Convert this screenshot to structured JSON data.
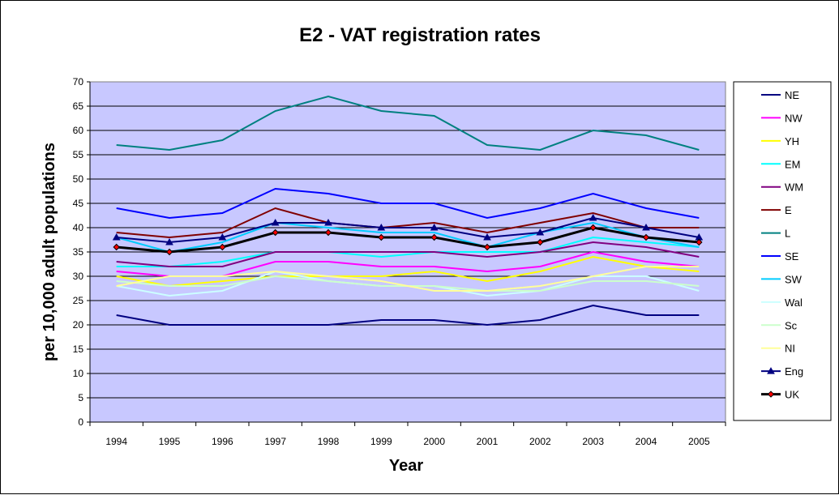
{
  "chart_data": {
    "type": "line",
    "title": "E2 - VAT registration rates",
    "xlabel": "Year",
    "ylabel": "per 10,000 adult populations",
    "ylim": [
      0,
      70
    ],
    "ytick_step": 5,
    "yticks": [
      "0",
      "5",
      "10",
      "15",
      "20",
      "25",
      "30",
      "35",
      "40",
      "45",
      "50",
      "55",
      "60",
      "65",
      "70"
    ],
    "grid": "horizontal",
    "legend_position": "right",
    "plot_background": "#c8c8ff",
    "categories": [
      "1994",
      "1995",
      "1996",
      "1997",
      "1998",
      "1999",
      "2000",
      "2001",
      "2002",
      "2003",
      "2004",
      "2005"
    ],
    "series": [
      {
        "name": "NE",
        "color": "#000080",
        "marker": "none",
        "values": [
          22,
          20,
          20,
          20,
          20,
          21,
          21,
          20,
          21,
          24,
          22,
          22
        ]
      },
      {
        "name": "NW",
        "color": "#ff00ff",
        "marker": "none",
        "values": [
          31,
          30,
          30,
          33,
          33,
          32,
          32,
          31,
          32,
          35,
          33,
          32
        ]
      },
      {
        "name": "YH",
        "color": "#ffff00",
        "marker": "none",
        "values": [
          30,
          28,
          29,
          30,
          30,
          30,
          31,
          29,
          31,
          34,
          32,
          31
        ]
      },
      {
        "name": "EM",
        "color": "#00ffff",
        "marker": "none",
        "values": [
          32,
          32,
          33,
          35,
          35,
          34,
          35,
          35,
          35,
          38,
          37,
          36
        ]
      },
      {
        "name": "WM",
        "color": "#800080",
        "marker": "none",
        "values": [
          33,
          32,
          32,
          35,
          35,
          35,
          35,
          34,
          35,
          37,
          36,
          34
        ]
      },
      {
        "name": "E",
        "color": "#800000",
        "marker": "none",
        "values": [
          39,
          38,
          39,
          44,
          41,
          40,
          41,
          39,
          41,
          43,
          40,
          40
        ]
      },
      {
        "name": "L",
        "color": "#008080",
        "marker": "none",
        "values": [
          57,
          56,
          58,
          64,
          67,
          64,
          63,
          57,
          56,
          60,
          59,
          56
        ]
      },
      {
        "name": "SE",
        "color": "#0000ff",
        "marker": "none",
        "values": [
          44,
          42,
          43,
          48,
          47,
          45,
          45,
          42,
          44,
          47,
          44,
          42
        ]
      },
      {
        "name": "SW",
        "color": "#00ccff",
        "marker": "none",
        "values": [
          38,
          35,
          37,
          41,
          40,
          39,
          39,
          36,
          39,
          41,
          38,
          36
        ]
      },
      {
        "name": "Wal",
        "color": "#ccffff",
        "marker": "none",
        "values": [
          28,
          26,
          27,
          31,
          29,
          28,
          28,
          26,
          27,
          30,
          30,
          27
        ]
      },
      {
        "name": "Sc",
        "color": "#ccffcc",
        "marker": "none",
        "values": [
          29,
          28,
          28,
          30,
          29,
          28,
          28,
          27,
          27,
          29,
          29,
          28
        ]
      },
      {
        "name": "NI",
        "color": "#ffff99",
        "marker": "none",
        "values": [
          28,
          30,
          30,
          31,
          30,
          29,
          27,
          27,
          28,
          30,
          32,
          32
        ]
      },
      {
        "name": "Eng",
        "color": "#000080",
        "marker": "triangle",
        "values": [
          38,
          37,
          38,
          41,
          41,
          40,
          40,
          38,
          39,
          42,
          40,
          38
        ]
      },
      {
        "name": "UK",
        "color": "#000000",
        "marker": "diamond",
        "marker_fill": "#ff0000",
        "values": [
          36,
          35,
          36,
          39,
          39,
          38,
          38,
          36,
          37,
          40,
          38,
          37
        ]
      }
    ]
  }
}
